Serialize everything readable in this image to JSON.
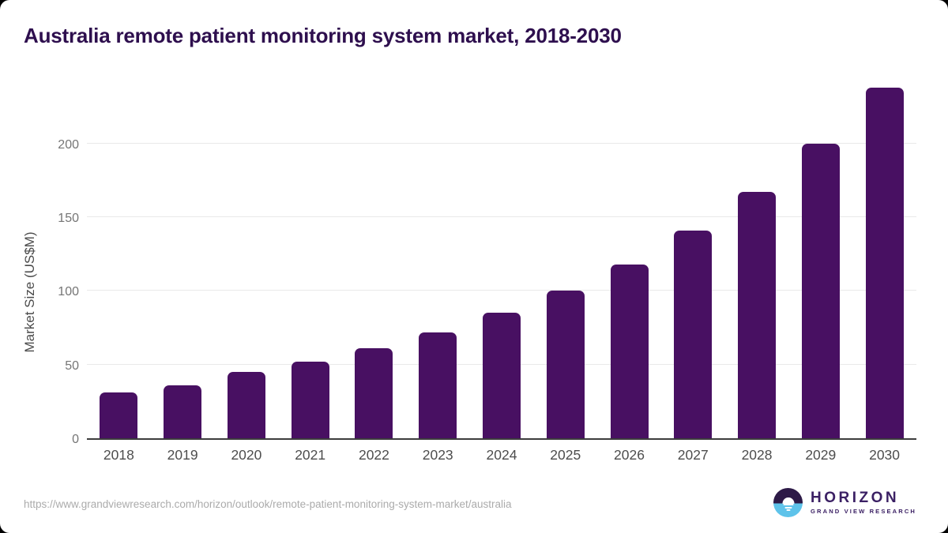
{
  "page": {
    "source_url": "https://www.grandviewresearch.com/horizon/outlook/remote-patient-monitoring-system-market/australia",
    "logo": {
      "name": "HORIZON",
      "subtitle": "GRAND VIEW RESEARCH"
    }
  },
  "chart_data": {
    "type": "bar",
    "title": "Australia remote patient monitoring system market, 2018-2030",
    "categories": [
      "2018",
      "2019",
      "2020",
      "2021",
      "2022",
      "2023",
      "2024",
      "2025",
      "2026",
      "2027",
      "2028",
      "2029",
      "2030"
    ],
    "values": [
      31,
      36,
      45,
      52,
      61,
      72,
      85,
      100,
      118,
      141,
      167,
      200,
      238
    ],
    "series_name": "Market Size",
    "xlabel": "",
    "ylabel": "Market Size (US$M)",
    "ylim": [
      0,
      240
    ],
    "yticks": [
      0,
      50,
      100,
      150,
      200
    ],
    "grid": "horizontal",
    "legend_position": "none",
    "bar_color": "#481062",
    "title_color": "#2e0f4e",
    "logo_blue": "#5ec3ea",
    "logo_purple": "#3b2064"
  }
}
